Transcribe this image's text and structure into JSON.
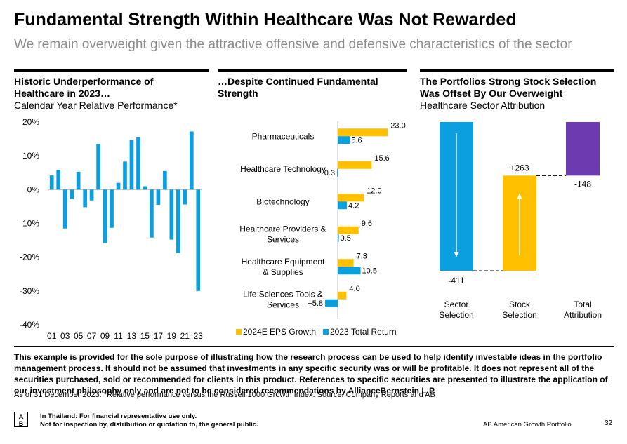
{
  "header": {
    "title": "Fundamental Strength Within Healthcare Was Not Rewarded",
    "subtitle": "We remain overweight given the attractive offensive and defensive characteristics of the sector"
  },
  "panels": [
    {
      "title_line1": "Historic Underperformance of",
      "title_line2": "Healthcare in 2023…",
      "subtitle": "Calendar Year Relative Performance*"
    },
    {
      "title_line1": "…Despite Continued Fundamental",
      "title_line2": "Strength"
    },
    {
      "title_line1": "The Portfolios Strong Stock Selection",
      "title_line2": "Was Offset By Our Overweight",
      "subtitle": "Healthcare Sector Attribution"
    }
  ],
  "chart_data": [
    {
      "type": "bar",
      "color": "#0c9fe0",
      "categories": [
        "01",
        "02",
        "03",
        "04",
        "05",
        "06",
        "07",
        "08",
        "09",
        "10",
        "11",
        "12",
        "13",
        "14",
        "15",
        "16",
        "17",
        "18",
        "19",
        "20",
        "21",
        "22",
        "23"
      ],
      "tick_labels": [
        "01",
        "03",
        "05",
        "07",
        "09",
        "11",
        "13",
        "15",
        "17",
        "19",
        "21",
        "23"
      ],
      "values": [
        4.2,
        5.8,
        -11.5,
        -2.8,
        5.3,
        -5.2,
        -3.2,
        13.5,
        -15.8,
        -11.3,
        2.0,
        8.3,
        14.7,
        15.5,
        1.0,
        -14.2,
        -4.5,
        5.5,
        -14.8,
        -18.8,
        -4.4,
        17.2,
        -30.0
      ],
      "ylim": [
        -40,
        20
      ],
      "yticks": [
        "20%",
        "10%",
        "0%",
        "-10%",
        "-20%",
        "-30%",
        "-40%"
      ],
      "ytick_values": [
        20,
        10,
        0,
        -10,
        -20,
        -30,
        -40
      ]
    },
    {
      "type": "bar",
      "orientation": "horizontal",
      "categories": [
        [
          "Pharmaceuticals"
        ],
        [
          "Healthcare Technology"
        ],
        [
          "Biotechnology"
        ],
        [
          "Healthcare Providers &",
          "Services"
        ],
        [
          "Healthcare Equipment",
          "& Supplies"
        ],
        [
          "Life Sciences Tools &",
          "Services"
        ]
      ],
      "series": [
        {
          "name": "2024E EPS Growth",
          "color": "#ffc000",
          "values": [
            23.0,
            15.6,
            12.0,
            9.6,
            7.3,
            4.0
          ],
          "labels": [
            "23.0",
            "15.6",
            "12.0",
            "9.6",
            "7.3",
            "4.0"
          ]
        },
        {
          "name": "2023 Total Return",
          "color": "#0c9fe0",
          "values": [
            5.6,
            -0.3,
            4.2,
            0.5,
            10.5,
            -5.8
          ],
          "labels": [
            "5.6",
            "−0.3",
            "4.2",
            "0.5",
            "10.5",
            "−5.8"
          ]
        }
      ],
      "legend": "bottom"
    },
    {
      "type": "waterfall",
      "categories": [
        [
          "Sector",
          "Selection"
        ],
        [
          "Stock",
          "Selection"
        ],
        [
          "Total",
          "Attribution"
        ]
      ],
      "values": [
        -411,
        263,
        -148
      ],
      "labels": [
        "-411",
        "+263",
        "-148"
      ],
      "colors": [
        "#0c9fe0",
        "#ffc000",
        "#6d3ab0"
      ]
    }
  ],
  "disclaimer": "This example is provided for the sole purpose of illustrating how the research process can be used to help identify investable ideas in the portfolio management process. It should not be assumed that investments in any specific security was or will be profitable. It does not represent all of the securities purchased, sold or recommended for clients in this product. References to specific securities are presented to illustrate the application of our investment philosophy only and are not to be considered recommendations by AllianceBernstein L.P.",
  "source": "As of 31 December 2023. *Relative performance versus the Russell 1000 Growth Index. Source: Company Reports and AB",
  "footer": {
    "logo_top": "A",
    "logo_bottom": "B",
    "note_line1": "In Thailand: For financial representative use only.",
    "note_line2": "Not for inspection by, distribution or quotation to, the general public.",
    "right": "AB American Growth Portfolio",
    "page": "32"
  }
}
